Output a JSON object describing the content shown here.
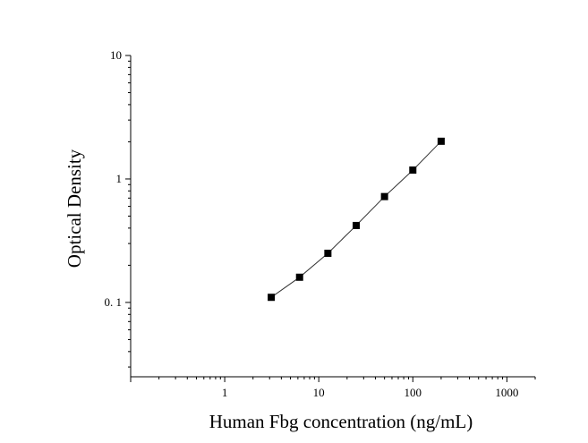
{
  "chart_data": {
    "type": "scatter",
    "xlabel": "Human Fbg concentration (ng/mL)",
    "ylabel": "Optical Density",
    "xscale": "log",
    "yscale": "log",
    "xlim": [
      0.1,
      2000
    ],
    "ylim": [
      0.025,
      10
    ],
    "x_tick_labels": [
      {
        "value": 1,
        "label": "1"
      },
      {
        "value": 10,
        "label": "10"
      },
      {
        "value": 100,
        "label": "100"
      },
      {
        "value": 1000,
        "label": "1000"
      }
    ],
    "y_tick_labels": [
      {
        "value": 0.1,
        "label": "0. 1"
      },
      {
        "value": 1,
        "label": "1"
      },
      {
        "value": 10,
        "label": "10"
      }
    ],
    "grid": false,
    "series": [
      {
        "marker": "square",
        "color": "#000000",
        "x": [
          3.125,
          6.25,
          12.5,
          25,
          50,
          100,
          200
        ],
        "y": [
          0.11,
          0.16,
          0.25,
          0.42,
          0.72,
          1.18,
          2.02
        ]
      }
    ],
    "fit_line": true
  }
}
